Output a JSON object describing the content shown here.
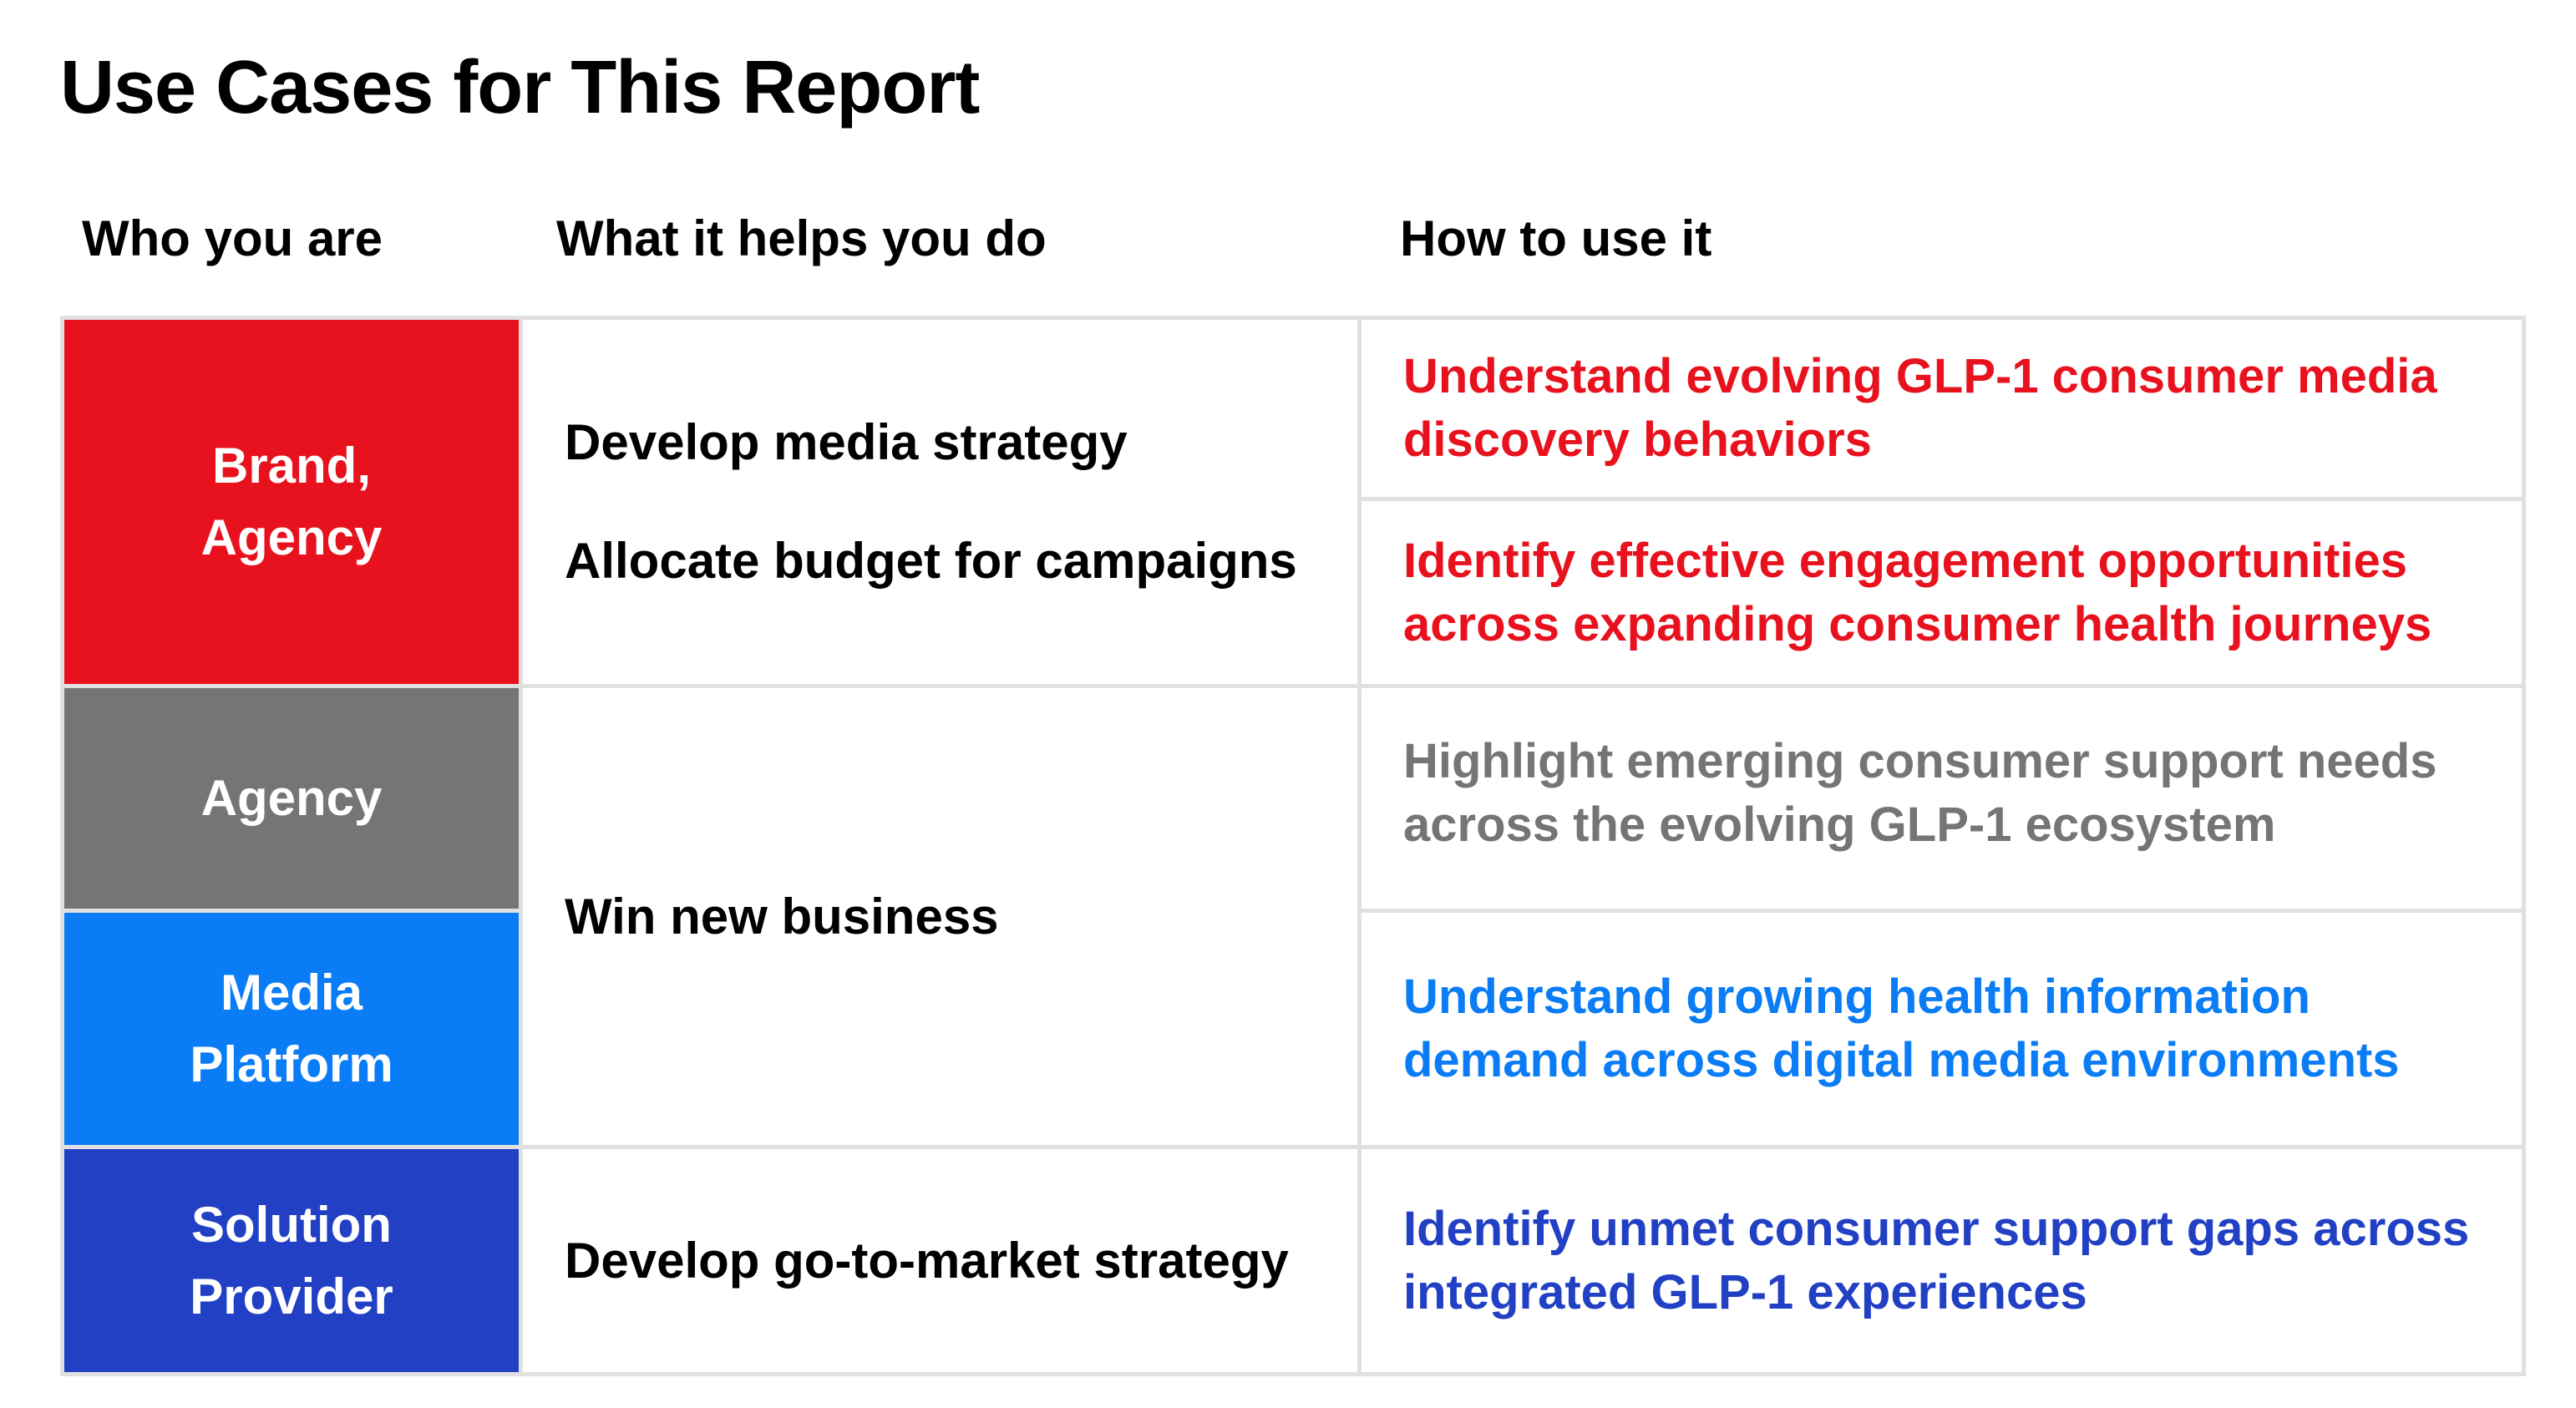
{
  "title": "Use Cases for This Report",
  "headers": {
    "who": "Who you are",
    "what": "What it helps you do",
    "how": "How to use it"
  },
  "colors": {
    "red": "#e8121e",
    "gray": "#757575",
    "blue": "#0a7cf5",
    "navy": "#2140c4",
    "grid": "#e0e0e0"
  },
  "who": [
    {
      "label": "Brand,\nAgency",
      "color": "#e8121e"
    },
    {
      "label": "Agency",
      "color": "#757575"
    },
    {
      "label": "Media\nPlatform",
      "color": "#0a7cf5"
    },
    {
      "label": "Solution\nProvider",
      "color": "#2140c4"
    }
  ],
  "what": [
    {
      "lines": [
        "Develop media strategy",
        "Allocate budget for campaigns"
      ]
    },
    {
      "lines": [
        "Win new business"
      ]
    },
    {
      "lines": [
        "Develop go-to-market strategy"
      ]
    }
  ],
  "how": [
    {
      "text": "Understand evolving GLP-1 consumer media discovery behaviors",
      "color": "#e8121e"
    },
    {
      "text": "Identify effective engagement opportunities across expanding consumer health journeys",
      "color": "#e8121e"
    },
    {
      "text": "Highlight emerging consumer support needs across the evolving GLP-1 ecosystem",
      "color": "#757575"
    },
    {
      "text": "Understand growing health information demand across digital media environments",
      "color": "#0a7cf5"
    },
    {
      "text": "Identify unmet consumer support gaps across integrated GLP-1 experiences",
      "color": "#2140c4"
    }
  ]
}
